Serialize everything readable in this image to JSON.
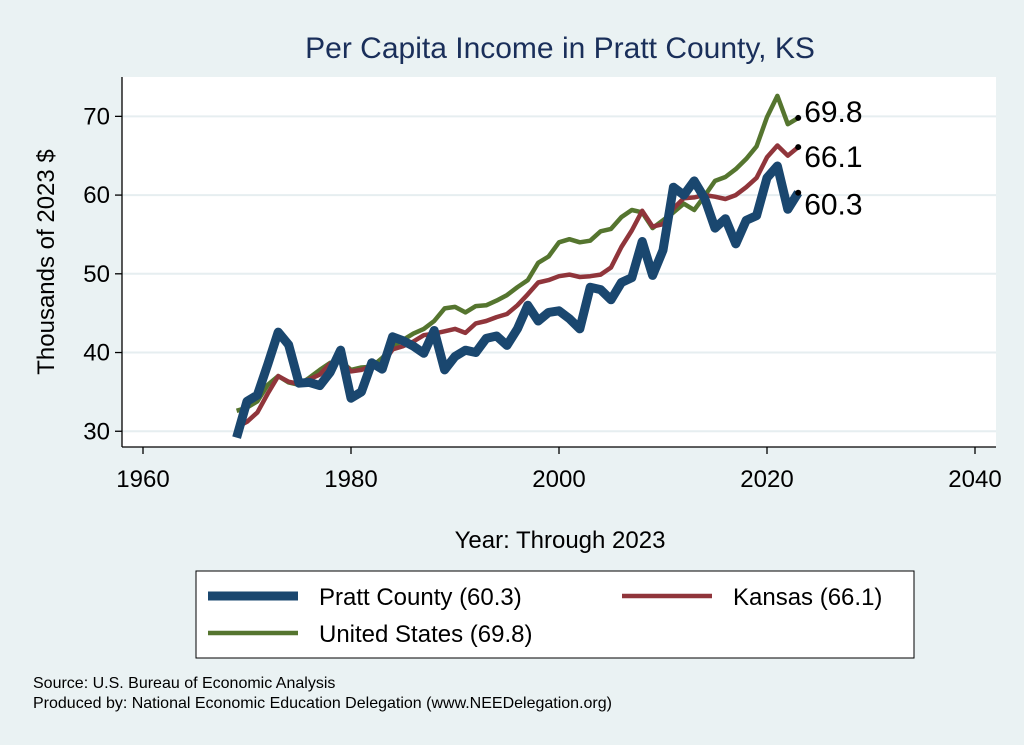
{
  "chart_data": {
    "type": "line",
    "title": "Per Capita Income in Pratt County, KS",
    "xlabel": "Year: Through 2023",
    "ylabel": "Thousands of 2023 $",
    "xlim": [
      1960,
      2040
    ],
    "ylim": [
      28,
      75
    ],
    "x_ticks": [
      "1960",
      "1980",
      "2000",
      "2020",
      "2040"
    ],
    "y_ticks": [
      "30",
      "40",
      "50",
      "60",
      "70"
    ],
    "grid": "horizontal",
    "legend_position": "bottom",
    "x": [
      1969,
      1970,
      1971,
      1972,
      1973,
      1974,
      1975,
      1976,
      1977,
      1978,
      1979,
      1980,
      1981,
      1982,
      1983,
      1984,
      1985,
      1986,
      1987,
      1988,
      1989,
      1990,
      1991,
      1992,
      1993,
      1994,
      1995,
      1996,
      1997,
      1998,
      1999,
      2000,
      2001,
      2002,
      2003,
      2004,
      2005,
      2006,
      2007,
      2008,
      2009,
      2010,
      2011,
      2012,
      2013,
      2014,
      2015,
      2016,
      2017,
      2018,
      2019,
      2020,
      2021,
      2022,
      2023
    ],
    "series": [
      {
        "name": "Pratt County (60.3)",
        "color": "#1a476f",
        "end_label": "60.3",
        "values": [
          29.2,
          33.8,
          34.6,
          38.5,
          42.6,
          41.0,
          36.1,
          36.2,
          35.8,
          37.5,
          40.3,
          34.2,
          35.0,
          38.7,
          37.9,
          42.0,
          41.5,
          40.8,
          39.9,
          42.8,
          37.8,
          39.5,
          40.3,
          40.0,
          41.8,
          42.1,
          40.9,
          43.0,
          46.0,
          44.0,
          45.1,
          45.3,
          44.3,
          43.0,
          48.3,
          48.0,
          46.7,
          48.9,
          49.5,
          54.1,
          49.8,
          53.0,
          61.0,
          60.0,
          61.8,
          59.6,
          55.8,
          57.0,
          53.8,
          56.8,
          57.4,
          62.2,
          63.7,
          58.2,
          60.3
        ]
      },
      {
        "name": "Kansas (66.1)",
        "color": "#90353b",
        "end_label": "66.1",
        "values": [
          30.5,
          31.2,
          32.4,
          34.8,
          37.0,
          36.3,
          36.0,
          36.6,
          37.2,
          38.6,
          39.0,
          37.6,
          37.8,
          38.3,
          38.5,
          40.4,
          40.8,
          41.4,
          42.2,
          42.4,
          42.7,
          43.0,
          42.5,
          43.7,
          44.0,
          44.5,
          44.9,
          46.0,
          47.4,
          48.9,
          49.2,
          49.7,
          49.9,
          49.6,
          49.7,
          49.9,
          50.8,
          53.4,
          55.5,
          58.0,
          56.0,
          56.3,
          58.3,
          59.6,
          59.7,
          60.0,
          59.8,
          59.5,
          60.0,
          61.0,
          62.2,
          64.8,
          66.3,
          65.0,
          66.1
        ]
      },
      {
        "name": "United States (69.8)",
        "color": "#55752f",
        "end_label": "69.8",
        "values": [
          32.6,
          33.0,
          33.8,
          35.9,
          37.0,
          36.2,
          35.9,
          36.8,
          37.8,
          38.7,
          38.9,
          37.8,
          38.1,
          38.2,
          39.3,
          40.7,
          41.6,
          42.4,
          43.0,
          44.0,
          45.6,
          45.8,
          45.1,
          45.9,
          46.0,
          46.6,
          47.3,
          48.3,
          49.2,
          51.4,
          52.2,
          54.0,
          54.4,
          54.0,
          54.2,
          55.4,
          55.7,
          57.2,
          58.1,
          57.8,
          55.8,
          56.8,
          57.8,
          58.9,
          58.1,
          59.9,
          61.8,
          62.3,
          63.3,
          64.6,
          66.2,
          69.9,
          72.6,
          69.0,
          69.8
        ]
      }
    ]
  },
  "footer": {
    "source_line": "Source: U.S. Bureau of Economic Analysis",
    "produced_line": "Produced by: National Economic Education Delegation (www.NEEDelegation.org)"
  }
}
